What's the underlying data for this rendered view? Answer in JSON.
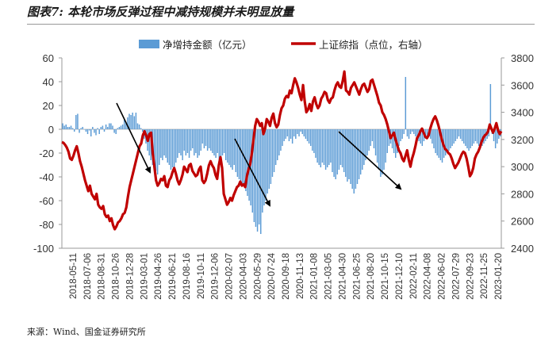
{
  "title": "图表7: 本轮市场反弹过程中减持规模并未明显放量",
  "source": "来源：Wind、国金证券研究所",
  "chart_data": {
    "type": "bar+line",
    "legend": {
      "position": "top",
      "bar_label": "净增持金额（亿元）",
      "line_label": "上证综指（点位，右轴）"
    },
    "colors": {
      "bar": "#5b9bd5",
      "line": "#c00000",
      "arrow": "#000000",
      "axis": "#999999"
    },
    "y_left": {
      "min": -100,
      "max": 60,
      "ticks": [
        60,
        40,
        20,
        0,
        -20,
        -40,
        -60,
        -80,
        -100
      ]
    },
    "y_right": {
      "min": 2400,
      "max": 3800,
      "ticks": [
        3800,
        3600,
        3400,
        3200,
        3000,
        2800,
        2600,
        2400
      ]
    },
    "x_labels": [
      "2018-05-11",
      "2018-07-06",
      "2018-08-31",
      "2018-10-26",
      "2018-12-28",
      "2019-03-01",
      "2019-04-26",
      "2019-06-21",
      "2019-08-16",
      "2019-10-11",
      "2019-12-06",
      "2020-02-07",
      "2020-04-03",
      "2020-05-29",
      "2020-07-24",
      "2020-09-18",
      "2020-11-13",
      "2021-01-08",
      "2021-03-05",
      "2021-04-30",
      "2021-06-25",
      "2021-08-20",
      "2021-10-15",
      "2021-12-10",
      "2022-02-11",
      "2022-04-08",
      "2022-06-02",
      "2022-07-29",
      "2022-09-23",
      "2022-11-25",
      "2023-01-20"
    ],
    "bars": [
      5,
      3,
      4,
      2,
      2,
      3,
      1,
      -2,
      12,
      13,
      -3,
      1,
      2,
      0,
      -2,
      -4,
      -1,
      -6,
      2,
      -3,
      -5,
      1,
      -4,
      2,
      3,
      -2,
      4,
      2,
      5,
      5,
      3,
      -3,
      -4,
      1,
      2,
      3,
      4,
      8,
      6,
      10,
      13,
      12,
      14,
      11,
      14,
      5,
      4,
      1,
      -2,
      -8,
      -12,
      -18,
      -22,
      -26,
      -30,
      -33,
      -35,
      -38,
      -30,
      -24,
      -26,
      -22,
      -24,
      -28,
      -30,
      -34,
      -32,
      -36,
      -28,
      -24,
      -20,
      -22,
      -26,
      -18,
      -22,
      -20,
      -24,
      -18,
      -16,
      -22,
      -20,
      -24,
      -22,
      -18,
      -12,
      -16,
      -14,
      -18,
      -16,
      -18,
      -20,
      -22,
      -24,
      -20,
      -26,
      -24,
      -22,
      -20,
      -26,
      -28,
      -30,
      -32,
      -34,
      -30,
      -36,
      -40,
      -42,
      -44,
      -46,
      -48,
      -52,
      -56,
      -60,
      -64,
      -70,
      -78,
      -82,
      -86,
      -80,
      -88,
      -70,
      -64,
      -60,
      -54,
      -50,
      -46,
      -40,
      -36,
      -30,
      -26,
      -22,
      -18,
      -14,
      -10,
      -8,
      -6,
      -10,
      -8,
      -12,
      -6,
      -8,
      -4,
      -6,
      -2,
      -4,
      -6,
      -8,
      -10,
      -12,
      -14,
      -18,
      -20,
      -24,
      -28,
      -30,
      -32,
      -28,
      -30,
      -34,
      -32,
      -30,
      -28,
      -36,
      -40,
      -42,
      -38,
      -34,
      -30,
      -32,
      -36,
      -40,
      -44,
      -42,
      -46,
      -50,
      -54,
      -50,
      -46,
      -42,
      -38,
      -34,
      -30,
      -26,
      -22,
      -18,
      -14,
      -10,
      -16,
      -22,
      -28,
      -34,
      -40,
      -38,
      -34,
      -28,
      -20,
      -14,
      -12,
      -16,
      -20,
      -24,
      -20,
      -14,
      -10,
      -8,
      -4,
      44,
      -6,
      -8,
      -4,
      -2,
      -4,
      -6,
      -8,
      -10,
      -12,
      -14,
      -10,
      -8,
      -6,
      -4,
      -8,
      -12,
      -16,
      -20,
      -22,
      -24,
      -26,
      -28,
      -24,
      -22,
      -20,
      -18,
      -16,
      -14,
      -12,
      -10,
      -8,
      -6,
      -8,
      -10,
      -12,
      -14,
      -16,
      -18,
      -16,
      -14,
      -12,
      -10,
      -12,
      -14,
      -16,
      -14,
      -12,
      -10,
      -8,
      -6,
      38,
      -4,
      -10,
      -16,
      -12,
      -8,
      -6
    ],
    "line": [
      3180,
      3175,
      3160,
      3140,
      3110,
      3060,
      3050,
      3080,
      3120,
      3150,
      3100,
      3040,
      3000,
      2950,
      2900,
      2860,
      2820,
      2860,
      2800,
      2780,
      2760,
      2800,
      2720,
      2700,
      2690,
      2710,
      2650,
      2630,
      2640,
      2600,
      2620,
      2570,
      2540,
      2560,
      2590,
      2600,
      2620,
      2650,
      2660,
      2700,
      2780,
      2850,
      2900,
      2950,
      3000,
      3050,
      3100,
      3150,
      3170,
      3230,
      3260,
      3230,
      3190,
      3240,
      3250,
      3100,
      3000,
      2900,
      2860,
      2880,
      2910,
      2900,
      2930,
      2860,
      2850,
      2900,
      2920,
      2960,
      2990,
      2950,
      2900,
      2870,
      2900,
      2940,
      3000,
      2980,
      2960,
      3010,
      3020,
      2970,
      2950,
      2930,
      2940,
      2980,
      3000,
      2900,
      2880,
      2900,
      2950,
      3010,
      3040,
      3010,
      2990,
      2940,
      2910,
      3010,
      3070,
      2990,
      2800,
      2760,
      2720,
      2740,
      2770,
      2750,
      2790,
      2820,
      2850,
      2860,
      2890,
      2860,
      2870,
      2850,
      2930,
      2980,
      3020,
      3100,
      3200,
      3300,
      3350,
      3330,
      3300,
      3320,
      3240,
      3280,
      3350,
      3330,
      3300,
      3360,
      3390,
      3320,
      3290,
      3310,
      3380,
      3430,
      3450,
      3500,
      3520,
      3510,
      3560,
      3540,
      3600,
      3650,
      3620,
      3580,
      3530,
      3490,
      3600,
      3480,
      3400,
      3420,
      3460,
      3410,
      3480,
      3510,
      3460,
      3430,
      3450,
      3500,
      3520,
      3550,
      3540,
      3490,
      3470,
      3500,
      3510,
      3560,
      3600,
      3620,
      3590,
      3580,
      3630,
      3700,
      3560,
      3550,
      3530,
      3580,
      3600,
      3620,
      3590,
      3560,
      3530,
      3570,
      3600,
      3610,
      3580,
      3550,
      3570,
      3630,
      3640,
      3600,
      3560,
      3520,
      3470,
      3450,
      3400,
      3380,
      3350,
      3310,
      3260,
      3210,
      3230,
      3250,
      3200,
      3160,
      3120,
      3100,
      3060,
      3040,
      3080,
      3120,
      3050,
      3000,
      3060,
      3100,
      3150,
      3210,
      3230,
      3260,
      3280,
      3250,
      3220,
      3210,
      3230,
      3280,
      3320,
      3350,
      3370,
      3340,
      3300,
      3250,
      3200,
      3160,
      3130,
      3120,
      3100,
      3090,
      3060,
      3020,
      2990,
      3010,
      3030,
      3060,
      3090,
      3110,
      3100,
      3060,
      3000,
      2930,
      2950,
      2990,
      3060,
      3090,
      3110,
      3140,
      3180,
      3210,
      3230,
      3240,
      3260,
      3310,
      3280,
      3250,
      3280,
      3320,
      3270,
      3240,
      3260
    ]
  }
}
